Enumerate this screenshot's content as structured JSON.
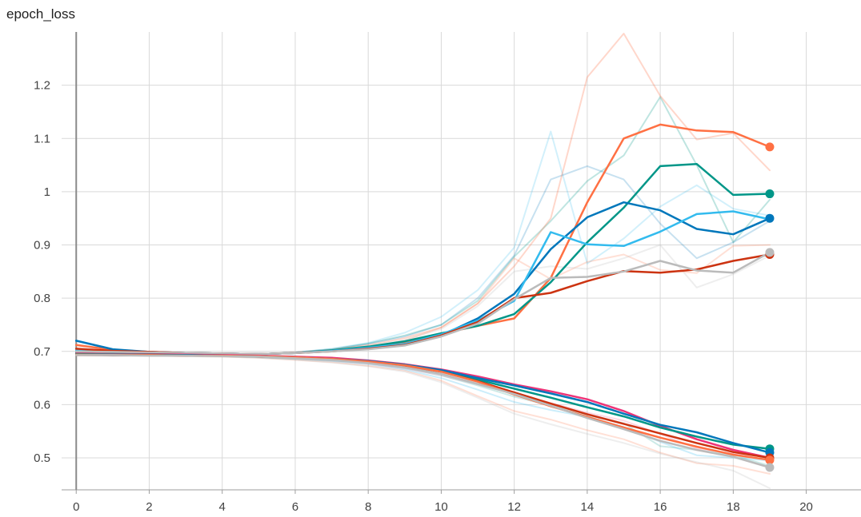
{
  "chart_data": {
    "type": "line",
    "title": "epoch_loss",
    "xlabel": "",
    "ylabel": "",
    "xlim": [
      -0.4,
      21.5
    ],
    "ylim": [
      0.44,
      1.3
    ],
    "x_ticks": [
      0,
      2,
      4,
      6,
      8,
      10,
      12,
      14,
      16,
      18,
      20
    ],
    "y_ticks": [
      0.5,
      0.6,
      0.7,
      0.8,
      0.9,
      1,
      1.1,
      1.2
    ],
    "y_tick_labels": [
      "0.5",
      "0.6",
      "0.7",
      "0.8",
      "0.9",
      "1",
      "1.1",
      "1.2"
    ],
    "grid": true,
    "smoothing": "faded lines show raw values, solid lines smoothed",
    "x": [
      0,
      1,
      2,
      3,
      4,
      5,
      6,
      7,
      8,
      9,
      10,
      11,
      12,
      13,
      14,
      15,
      16,
      17,
      18,
      19
    ],
    "series": [
      {
        "color": "#ff7043",
        "opacity": 1,
        "marker": true,
        "values": [
          0.712,
          0.703,
          0.699,
          0.697,
          0.696,
          0.695,
          0.697,
          0.701,
          0.706,
          0.716,
          0.733,
          0.748,
          0.762,
          0.838,
          0.98,
          1.1,
          1.126,
          1.115,
          1.112,
          1.084
        ]
      },
      {
        "color": "#009688",
        "opacity": 1,
        "marker": true,
        "values": [
          0.698,
          0.697,
          0.697,
          0.697,
          0.696,
          0.695,
          0.697,
          0.702,
          0.709,
          0.719,
          0.734,
          0.748,
          0.77,
          0.83,
          0.905,
          0.97,
          1.048,
          1.052,
          0.994,
          0.996
        ]
      },
      {
        "color": "#0077bb",
        "opacity": 1,
        "marker": true,
        "values": [
          0.72,
          0.704,
          0.699,
          0.697,
          0.696,
          0.695,
          0.697,
          0.701,
          0.706,
          0.712,
          0.73,
          0.762,
          0.808,
          0.892,
          0.952,
          0.98,
          0.965,
          0.93,
          0.92,
          0.95
        ]
      },
      {
        "color": "#33bbee",
        "opacity": 1,
        "marker": false,
        "values": [
          0.702,
          0.7,
          0.698,
          0.697,
          0.696,
          0.695,
          0.697,
          0.701,
          0.707,
          0.714,
          0.732,
          0.758,
          0.795,
          0.924,
          0.901,
          0.898,
          0.925,
          0.958,
          0.963,
          0.948
        ]
      },
      {
        "color": "#cc3311",
        "opacity": 1,
        "marker": true,
        "values": [
          0.705,
          0.701,
          0.699,
          0.697,
          0.696,
          0.695,
          0.697,
          0.7,
          0.705,
          0.712,
          0.73,
          0.755,
          0.8,
          0.81,
          0.832,
          0.851,
          0.848,
          0.854,
          0.87,
          0.882
        ]
      },
      {
        "color": "#bbbbbb",
        "opacity": 1,
        "marker": true,
        "values": [
          0.7,
          0.699,
          0.698,
          0.697,
          0.696,
          0.695,
          0.697,
          0.7,
          0.704,
          0.711,
          0.728,
          0.752,
          0.798,
          0.838,
          0.84,
          0.85,
          0.87,
          0.852,
          0.848,
          0.886
        ]
      },
      {
        "color": "#ff7043",
        "opacity": 0.28,
        "marker": false,
        "values": [
          0.712,
          0.702,
          0.698,
          0.697,
          0.696,
          0.695,
          0.698,
          0.703,
          0.712,
          0.725,
          0.745,
          0.79,
          0.86,
          0.95,
          1.215,
          1.297,
          1.18,
          1.098,
          1.11,
          1.04
        ]
      },
      {
        "color": "#009688",
        "opacity": 0.25,
        "marker": false,
        "values": [
          0.698,
          0.697,
          0.697,
          0.697,
          0.696,
          0.695,
          0.698,
          0.704,
          0.715,
          0.73,
          0.75,
          0.795,
          0.878,
          0.945,
          1.02,
          1.068,
          1.178,
          1.05,
          0.905,
          0.985
        ]
      },
      {
        "color": "#0077bb",
        "opacity": 0.22,
        "marker": false,
        "values": [
          0.72,
          0.703,
          0.698,
          0.697,
          0.696,
          0.695,
          0.698,
          0.704,
          0.714,
          0.728,
          0.75,
          0.8,
          0.88,
          1.023,
          1.048,
          1.023,
          0.94,
          0.875,
          0.905,
          0.945
        ]
      },
      {
        "color": "#33bbee",
        "opacity": 0.22,
        "marker": false,
        "values": [
          0.702,
          0.699,
          0.698,
          0.697,
          0.696,
          0.695,
          0.698,
          0.705,
          0.716,
          0.735,
          0.765,
          0.815,
          0.895,
          1.113,
          0.865,
          0.912,
          0.972,
          1.012,
          0.968,
          0.955
        ]
      },
      {
        "color": "#ff7043",
        "opacity": 0.22,
        "marker": false,
        "values": [
          0.705,
          0.7,
          0.698,
          0.697,
          0.696,
          0.695,
          0.698,
          0.702,
          0.708,
          0.72,
          0.745,
          0.79,
          0.875,
          0.836,
          0.868,
          0.882,
          0.853,
          0.847,
          0.898,
          0.9
        ]
      },
      {
        "color": "#bbbbbb",
        "opacity": 0.25,
        "marker": false,
        "values": [
          0.7,
          0.699,
          0.698,
          0.697,
          0.696,
          0.695,
          0.698,
          0.702,
          0.71,
          0.722,
          0.742,
          0.785,
          0.85,
          0.86,
          0.855,
          0.875,
          0.9,
          0.82,
          0.845,
          0.88
        ]
      },
      {
        "color": "#ee3377",
        "opacity": 1,
        "marker": false,
        "values": [
          0.696,
          0.695,
          0.695,
          0.694,
          0.693,
          0.692,
          0.69,
          0.688,
          0.683,
          0.676,
          0.666,
          0.653,
          0.638,
          0.625,
          0.61,
          0.588,
          0.56,
          0.535,
          0.515,
          0.5
        ]
      },
      {
        "color": "#009688",
        "opacity": 1,
        "marker": true,
        "values": [
          0.695,
          0.694,
          0.694,
          0.693,
          0.692,
          0.691,
          0.689,
          0.686,
          0.681,
          0.674,
          0.663,
          0.647,
          0.63,
          0.613,
          0.595,
          0.578,
          0.557,
          0.54,
          0.525,
          0.517
        ]
      },
      {
        "color": "#0077bb",
        "opacity": 1,
        "marker": true,
        "values": [
          0.694,
          0.693,
          0.693,
          0.693,
          0.692,
          0.691,
          0.689,
          0.686,
          0.682,
          0.675,
          0.665,
          0.65,
          0.636,
          0.621,
          0.605,
          0.583,
          0.562,
          0.548,
          0.528,
          0.51
        ]
      },
      {
        "color": "#cc3311",
        "opacity": 1,
        "marker": true,
        "values": [
          0.693,
          0.693,
          0.693,
          0.692,
          0.692,
          0.69,
          0.688,
          0.685,
          0.68,
          0.672,
          0.662,
          0.644,
          0.623,
          0.602,
          0.582,
          0.564,
          0.546,
          0.528,
          0.511,
          0.5
        ]
      },
      {
        "color": "#ff7043",
        "opacity": 1,
        "marker": true,
        "values": [
          0.694,
          0.693,
          0.693,
          0.692,
          0.692,
          0.691,
          0.689,
          0.686,
          0.681,
          0.674,
          0.662,
          0.643,
          0.619,
          0.597,
          0.577,
          0.557,
          0.538,
          0.521,
          0.506,
          0.496
        ]
      },
      {
        "color": "#bbbbbb",
        "opacity": 1,
        "marker": true,
        "values": [
          0.693,
          0.693,
          0.692,
          0.692,
          0.691,
          0.69,
          0.687,
          0.684,
          0.678,
          0.67,
          0.658,
          0.639,
          0.62,
          0.598,
          0.575,
          0.554,
          0.532,
          0.515,
          0.502,
          0.482
        ]
      },
      {
        "color": "#33bbee",
        "opacity": 0.25,
        "marker": false,
        "values": [
          0.693,
          0.692,
          0.692,
          0.692,
          0.691,
          0.689,
          0.686,
          0.682,
          0.676,
          0.666,
          0.65,
          0.628,
          0.605,
          0.59,
          0.577,
          0.558,
          0.53,
          0.505,
          0.5,
          0.495
        ]
      },
      {
        "color": "#ff7043",
        "opacity": 0.22,
        "marker": false,
        "values": [
          0.693,
          0.692,
          0.692,
          0.691,
          0.69,
          0.688,
          0.684,
          0.68,
          0.673,
          0.664,
          0.645,
          0.616,
          0.588,
          0.572,
          0.552,
          0.535,
          0.51,
          0.49,
          0.485,
          0.47
        ]
      },
      {
        "color": "#009688",
        "opacity": 0.2,
        "marker": false,
        "values": [
          0.694,
          0.693,
          0.693,
          0.692,
          0.691,
          0.689,
          0.686,
          0.683,
          0.678,
          0.669,
          0.655,
          0.636,
          0.615,
          0.598,
          0.58,
          0.565,
          0.522,
          0.515,
          0.505,
          0.485
        ]
      },
      {
        "color": "#bbbbbb",
        "opacity": 0.25,
        "marker": false,
        "values": [
          0.693,
          0.692,
          0.692,
          0.691,
          0.69,
          0.688,
          0.684,
          0.679,
          0.672,
          0.662,
          0.642,
          0.613,
          0.583,
          0.563,
          0.545,
          0.528,
          0.508,
          0.492,
          0.476,
          0.443
        ]
      },
      {
        "color": "#ee3377",
        "opacity": 0.18,
        "marker": false,
        "values": [
          0.696,
          0.695,
          0.694,
          0.693,
          0.692,
          0.69,
          0.687,
          0.683,
          0.677,
          0.668,
          0.655,
          0.638,
          0.62,
          0.603,
          0.585,
          0.57,
          0.545,
          0.518,
          0.508,
          0.502
        ]
      }
    ]
  }
}
